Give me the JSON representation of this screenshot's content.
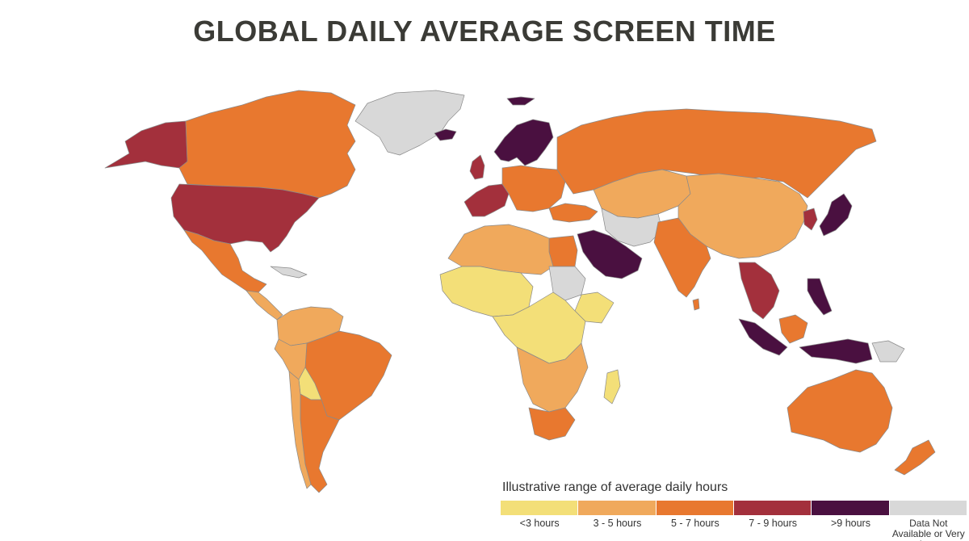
{
  "title": "GLOBAL DAILY AVERAGE SCREEN TIME",
  "legend": {
    "title": "Illustrative range of average daily hours",
    "items": [
      {
        "label": "<3 hours",
        "color": "#f3df78"
      },
      {
        "label": "3 - 5 hours",
        "color": "#f0a95c"
      },
      {
        "label": "5 - 7 hours",
        "color": "#e8782f"
      },
      {
        "label": "7 - 9 hours",
        "color": "#a3303c"
      },
      {
        "label": ">9 hours",
        "color": "#4a1040"
      },
      {
        "label": "Data Not Available or Very Low",
        "color": "#d8d8d8"
      }
    ]
  },
  "colors": {
    "lt3": "#f3df78",
    "h3to5": "#f0a95c",
    "h5to7": "#e8782f",
    "h7to9": "#a3303c",
    "gt9": "#4a1040",
    "na": "#d8d8d8"
  }
}
